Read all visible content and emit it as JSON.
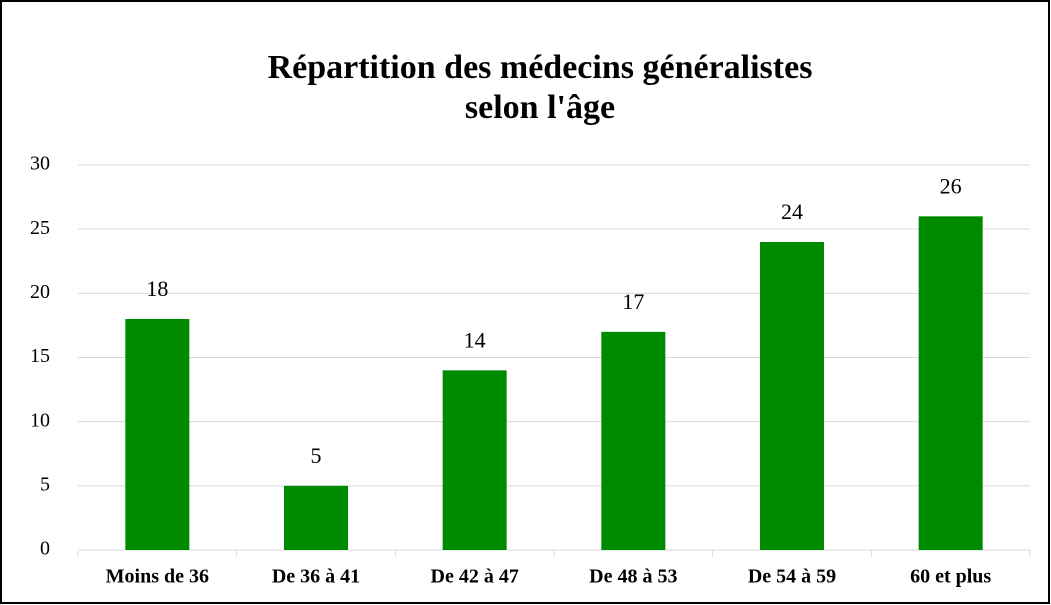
{
  "chart_data": {
    "type": "bar",
    "title": [
      "Répartition des médecins généralistes",
      "selon l'âge"
    ],
    "categories": [
      "Moins de 36",
      "De 36 à 41",
      "De 42 à 47",
      "De 48 à 53",
      "De 54 à 59",
      "60 et plus"
    ],
    "values": [
      18,
      5,
      14,
      17,
      24,
      26
    ],
    "color": "#008a00",
    "ylim": [
      0,
      30
    ],
    "yticks": [
      0,
      5,
      10,
      15,
      20,
      25,
      30
    ],
    "grid": true
  }
}
